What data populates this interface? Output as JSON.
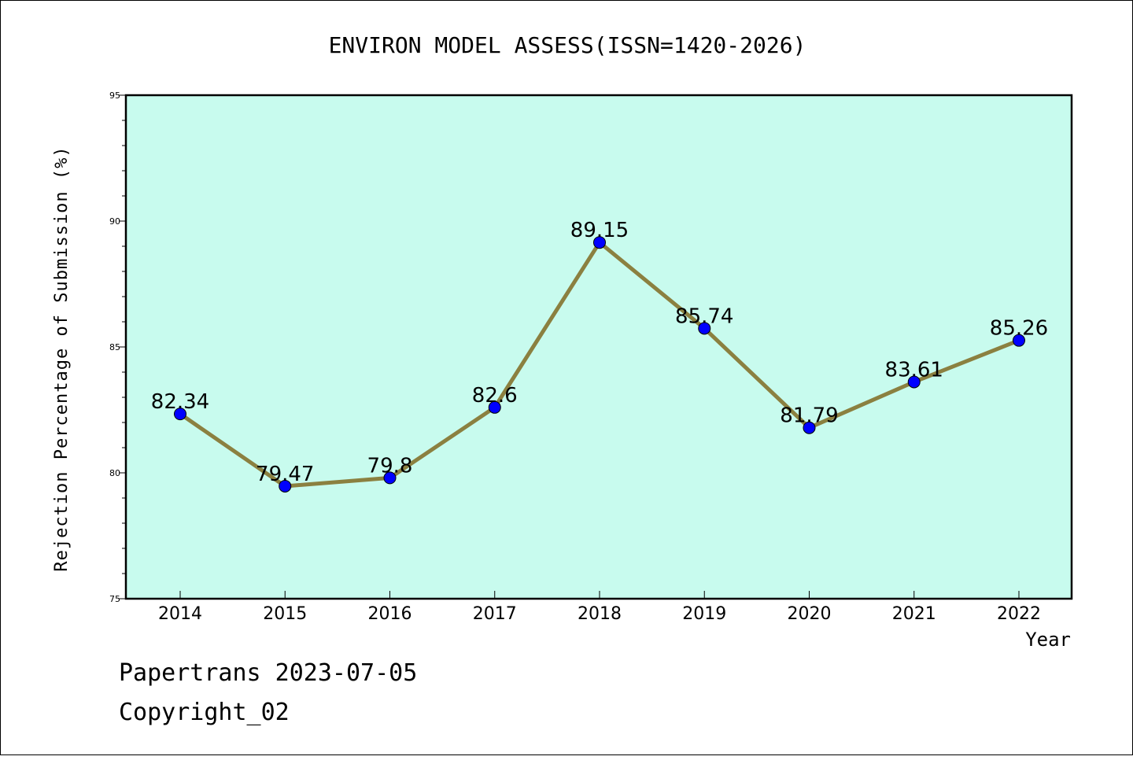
{
  "chart_data": {
    "type": "line",
    "title": "ENVIRON MODEL ASSESS(ISSN=1420-2026)",
    "xlabel": "Year",
    "ylabel": "Rejection Percentage of Submission (%)",
    "ylim": [
      75,
      95
    ],
    "yticks": [
      "75",
      "80",
      "85",
      "90",
      "95"
    ],
    "categories": [
      "2014",
      "2015",
      "2016",
      "2017",
      "2018",
      "2019",
      "2020",
      "2021",
      "2022"
    ],
    "values": [
      82.34,
      79.47,
      79.8,
      82.6,
      89.15,
      85.74,
      81.79,
      83.61,
      85.26
    ],
    "data_labels": [
      "82.34",
      "79.47",
      "79.8",
      "82.6",
      "89.15",
      "85.74",
      "81.79",
      "83.61",
      "85.26"
    ],
    "grid": false,
    "colors": {
      "plot_background": "#c8fbee",
      "line": "#8b8040",
      "marker": "#0000ff"
    }
  },
  "footer": {
    "line1": "Papertrans 2023-07-05",
    "line2": "Copyright_02"
  }
}
